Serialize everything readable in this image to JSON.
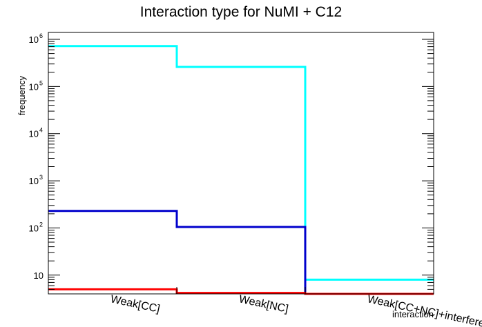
{
  "chart_data": {
    "type": "histogram-step",
    "title": "Interaction type for NuMI + C12",
    "xlabel": "interaction",
    "ylabel": "frequency",
    "yscale": "log",
    "ylim": [
      4,
      1400000
    ],
    "categories": [
      "Weak[CC]",
      "Weak[NC]",
      "Weak[CC+NC]+interference"
    ],
    "ytick_labels": [
      {
        "value": 10,
        "base": "10",
        "exp": ""
      },
      {
        "value": 100,
        "base": "10",
        "exp": "2"
      },
      {
        "value": 1000,
        "base": "10",
        "exp": "3"
      },
      {
        "value": 10000,
        "base": "10",
        "exp": "4"
      },
      {
        "value": 100000,
        "base": "10",
        "exp": "5"
      },
      {
        "value": 1000000,
        "base": "10",
        "exp": "6"
      }
    ],
    "series": [
      {
        "color": "#00ffff",
        "values": [
          720000,
          260000,
          8
        ]
      },
      {
        "color": "#0000cc",
        "values": [
          230,
          105,
          0
        ]
      },
      {
        "color": "#ff0000",
        "values": [
          5,
          4.2,
          0
        ]
      }
    ],
    "grid": false,
    "legend": "none"
  }
}
